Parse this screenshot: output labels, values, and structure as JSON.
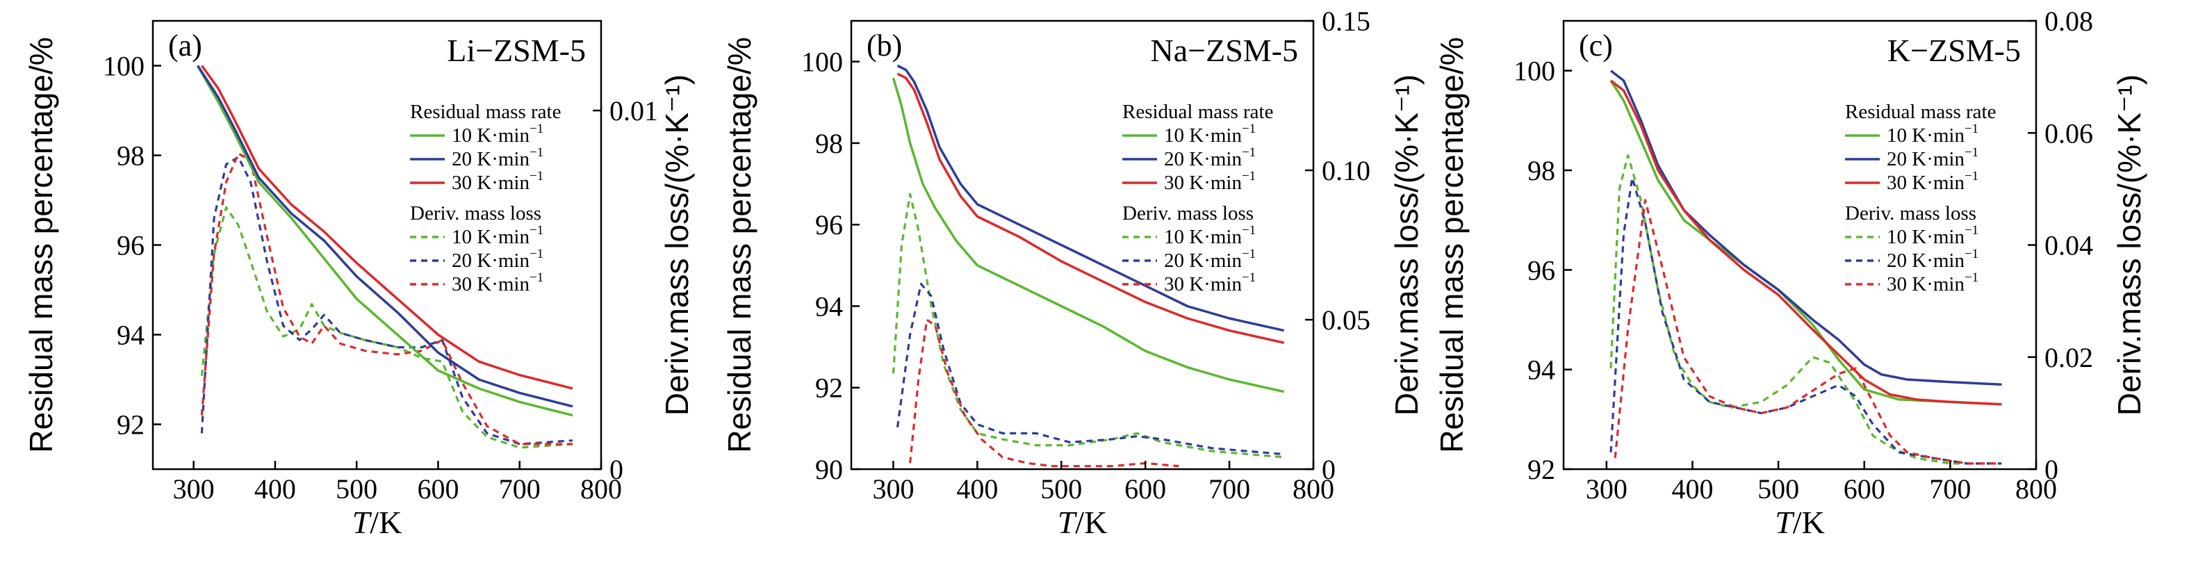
{
  "chart_data": [
    {
      "type": "line",
      "panel_label": "(a)",
      "title": "Li−ZSM-5",
      "xlabel_italic": "T",
      "xlabel_unit": "/K",
      "ylabel": "Residual mass percentage/%",
      "y2label": "Deriv.mass loss/(%·K⁻¹)",
      "xlim": [
        250,
        800
      ],
      "ylim": [
        91.0,
        101.0
      ],
      "y2lim": [
        0,
        0.0125
      ],
      "xticks": [
        "300",
        "400",
        "500",
        "600",
        "700",
        "800"
      ],
      "yticks": [
        "92",
        "94",
        "96",
        "98",
        "100"
      ],
      "y2ticks": [
        "0",
        "0.01"
      ],
      "legend_heading_1": "Residual mass rate",
      "legend_heading_2": "Deriv. mass loss",
      "legend_unit": "K·min",
      "legend_exp": "−1",
      "rates": [
        "10",
        "20",
        "30"
      ],
      "colors": [
        "#5ab82f",
        "#2d3d9a",
        "#dc2a2a"
      ],
      "mass_series": [
        {
          "x": [
            305,
            330,
            350,
            380,
            420,
            460,
            500,
            550,
            600,
            650,
            700,
            765
          ],
          "y": [
            100.0,
            99.2,
            98.5,
            97.4,
            96.6,
            95.7,
            94.8,
            94.0,
            93.2,
            92.8,
            92.5,
            92.2
          ]
        },
        {
          "x": [
            305,
            330,
            350,
            380,
            420,
            460,
            500,
            550,
            600,
            650,
            700,
            765
          ],
          "y": [
            100.0,
            99.3,
            98.6,
            97.5,
            96.7,
            96.1,
            95.3,
            94.5,
            93.6,
            93.0,
            92.7,
            92.4
          ]
        },
        {
          "x": [
            310,
            330,
            350,
            380,
            420,
            460,
            500,
            550,
            600,
            650,
            700,
            765
          ],
          "y": [
            100.0,
            99.5,
            98.8,
            97.7,
            96.9,
            96.3,
            95.6,
            94.8,
            94.0,
            93.4,
            93.1,
            92.8
          ]
        }
      ],
      "deriv_series": [
        {
          "x": [
            310,
            325,
            340,
            355,
            370,
            390,
            410,
            430,
            445,
            460,
            480,
            510,
            550,
            580,
            605,
            630,
            660,
            700,
            765
          ],
          "y": [
            0.0026,
            0.006,
            0.0073,
            0.0068,
            0.0058,
            0.0044,
            0.0037,
            0.0039,
            0.0046,
            0.004,
            0.0038,
            0.0036,
            0.0034,
            0.0031,
            0.003,
            0.0016,
            0.0009,
            0.0006,
            0.0007
          ]
        },
        {
          "x": [
            310,
            325,
            340,
            355,
            370,
            390,
            410,
            430,
            445,
            460,
            480,
            510,
            550,
            580,
            605,
            630,
            660,
            700,
            765
          ],
          "y": [
            0.001,
            0.007,
            0.0085,
            0.0087,
            0.008,
            0.0058,
            0.004,
            0.0036,
            0.0039,
            0.0043,
            0.0038,
            0.0036,
            0.0034,
            0.0034,
            0.0036,
            0.002,
            0.001,
            0.0007,
            0.0008
          ]
        },
        {
          "x": [
            310,
            325,
            340,
            355,
            370,
            390,
            410,
            430,
            445,
            460,
            480,
            510,
            550,
            580,
            605,
            630,
            660,
            700,
            765
          ],
          "y": [
            0.0015,
            0.006,
            0.008,
            0.0088,
            0.0086,
            0.0065,
            0.0045,
            0.0037,
            0.0035,
            0.004,
            0.0035,
            0.0033,
            0.0032,
            0.0033,
            0.0036,
            0.0024,
            0.0012,
            0.0007,
            0.0007
          ]
        }
      ]
    },
    {
      "type": "line",
      "panel_label": "(b)",
      "title": "Na−ZSM-5",
      "xlabel_italic": "T",
      "xlabel_unit": "/K",
      "ylabel": "Residual mass percentage/%",
      "y2label": "Deriv.mass loss/(%·K⁻¹)",
      "xlim": [
        250,
        800
      ],
      "ylim": [
        90.0,
        101.0
      ],
      "y2lim": [
        0,
        0.15
      ],
      "xticks": [
        "300",
        "400",
        "500",
        "600",
        "700",
        "800"
      ],
      "yticks": [
        "90",
        "92",
        "94",
        "96",
        "98",
        "100"
      ],
      "y2ticks": [
        "0",
        "0.05",
        "0.10",
        "0.15"
      ],
      "legend_heading_1": "Residual mass rate",
      "legend_heading_2": "Deriv. mass loss",
      "legend_unit": "K·min",
      "legend_exp": "−1",
      "rates": [
        "10",
        "20",
        "30"
      ],
      "colors": [
        "#5ab82f",
        "#2d3d9a",
        "#dc2a2a"
      ],
      "mass_series": [
        {
          "x": [
            300,
            310,
            320,
            335,
            350,
            375,
            400,
            450,
            500,
            550,
            600,
            650,
            700,
            765
          ],
          "y": [
            99.6,
            98.9,
            98.0,
            97.0,
            96.4,
            95.6,
            95.0,
            94.5,
            94.0,
            93.5,
            92.9,
            92.5,
            92.2,
            91.9
          ]
        },
        {
          "x": [
            305,
            315,
            325,
            340,
            355,
            380,
            400,
            450,
            500,
            550,
            600,
            650,
            700,
            765
          ],
          "y": [
            99.9,
            99.8,
            99.5,
            98.8,
            97.9,
            97.0,
            96.5,
            96.0,
            95.5,
            95.0,
            94.5,
            94.0,
            93.7,
            93.4
          ]
        },
        {
          "x": [
            305,
            315,
            325,
            340,
            355,
            380,
            400,
            450,
            500,
            550,
            600,
            650,
            700,
            765
          ],
          "y": [
            99.7,
            99.6,
            99.3,
            98.5,
            97.6,
            96.7,
            96.2,
            95.7,
            95.1,
            94.6,
            94.1,
            93.7,
            93.4,
            93.1
          ]
        }
      ],
      "deriv_series": [
        {
          "x": [
            300,
            310,
            320,
            330,
            345,
            360,
            380,
            400,
            430,
            470,
            510,
            560,
            590,
            620,
            680,
            765
          ],
          "y": [
            0.032,
            0.075,
            0.092,
            0.08,
            0.055,
            0.035,
            0.02,
            0.012,
            0.01,
            0.008,
            0.008,
            0.01,
            0.012,
            0.009,
            0.006,
            0.004
          ]
        },
        {
          "x": [
            305,
            320,
            333,
            345,
            360,
            380,
            400,
            430,
            470,
            510,
            560,
            590,
            620,
            680,
            765
          ],
          "y": [
            0.014,
            0.045,
            0.062,
            0.058,
            0.04,
            0.022,
            0.015,
            0.012,
            0.012,
            0.009,
            0.01,
            0.011,
            0.01,
            0.007,
            0.005
          ]
        },
        {
          "x": [
            320,
            330,
            340,
            350,
            365,
            385,
            405,
            430,
            460,
            490,
            520,
            560,
            600,
            640
          ],
          "y": [
            0.002,
            0.03,
            0.05,
            0.048,
            0.032,
            0.018,
            0.01,
            0.004,
            0.002,
            0.001,
            0.001,
            0.001,
            0.002,
            0.001
          ]
        }
      ]
    },
    {
      "type": "line",
      "panel_label": "(c)",
      "title": "K−ZSM-5",
      "xlabel_italic": "T",
      "xlabel_unit": "/K",
      "ylabel": "Residual mass percentage/%",
      "y2label": "Deriv.mass loss/(%·K⁻¹)",
      "xlim": [
        250,
        800
      ],
      "ylim": [
        92.0,
        101.0
      ],
      "y2lim": [
        0,
        0.08
      ],
      "xticks": [
        "300",
        "400",
        "500",
        "600",
        "700",
        "800"
      ],
      "yticks": [
        "92",
        "94",
        "96",
        "98",
        "100"
      ],
      "y2ticks": [
        "0",
        "0.02",
        "0.04",
        "0.06",
        "0.08"
      ],
      "legend_heading_1": "Residual mass rate",
      "legend_heading_2": "Deriv. mass loss",
      "legend_unit": "K·min",
      "legend_exp": "−1",
      "rates": [
        "10",
        "20",
        "30"
      ],
      "colors": [
        "#5ab82f",
        "#2d3d9a",
        "#dc2a2a"
      ],
      "mass_series": [
        {
          "x": [
            305,
            320,
            340,
            360,
            390,
            420,
            460,
            500,
            540,
            570,
            600,
            640,
            700,
            760
          ],
          "y": [
            99.8,
            99.4,
            98.6,
            97.8,
            97.0,
            96.6,
            96.1,
            95.6,
            94.9,
            94.2,
            93.6,
            93.4,
            93.35,
            93.3
          ]
        },
        {
          "x": [
            305,
            320,
            340,
            360,
            390,
            420,
            460,
            500,
            540,
            570,
            600,
            620,
            650,
            700,
            760
          ],
          "y": [
            100.0,
            99.8,
            99.0,
            98.1,
            97.2,
            96.7,
            96.1,
            95.6,
            95.0,
            94.6,
            94.1,
            93.9,
            93.8,
            93.75,
            93.7
          ]
        },
        {
          "x": [
            305,
            320,
            340,
            360,
            390,
            420,
            460,
            500,
            540,
            570,
            600,
            630,
            660,
            700,
            760
          ],
          "y": [
            99.8,
            99.6,
            98.9,
            98.0,
            97.2,
            96.6,
            96.0,
            95.5,
            94.8,
            94.3,
            93.8,
            93.5,
            93.4,
            93.35,
            93.3
          ]
        }
      ],
      "deriv_series": [
        {
          "x": [
            305,
            315,
            325,
            340,
            360,
            380,
            400,
            420,
            445,
            480,
            510,
            540,
            560,
            590,
            610,
            630,
            660,
            700,
            760
          ],
          "y": [
            0.018,
            0.05,
            0.056,
            0.048,
            0.032,
            0.02,
            0.015,
            0.012,
            0.011,
            0.012,
            0.015,
            0.02,
            0.019,
            0.012,
            0.006,
            0.004,
            0.002,
            0.001,
            0.001
          ]
        },
        {
          "x": [
            305,
            320,
            330,
            345,
            365,
            390,
            420,
            450,
            480,
            510,
            540,
            570,
            590,
            610,
            640,
            680,
            720,
            760
          ],
          "y": [
            0.003,
            0.042,
            0.052,
            0.044,
            0.028,
            0.016,
            0.012,
            0.011,
            0.01,
            0.011,
            0.013,
            0.015,
            0.013,
            0.008,
            0.003,
            0.002,
            0.001,
            0.001
          ]
        },
        {
          "x": [
            310,
            325,
            345,
            365,
            390,
            420,
            450,
            480,
            510,
            540,
            570,
            590,
            610,
            630,
            650,
            680,
            720,
            760
          ],
          "y": [
            0.002,
            0.025,
            0.048,
            0.036,
            0.02,
            0.013,
            0.011,
            0.01,
            0.011,
            0.014,
            0.017,
            0.018,
            0.012,
            0.006,
            0.003,
            0.002,
            0.001,
            0.001
          ]
        }
      ]
    }
  ]
}
